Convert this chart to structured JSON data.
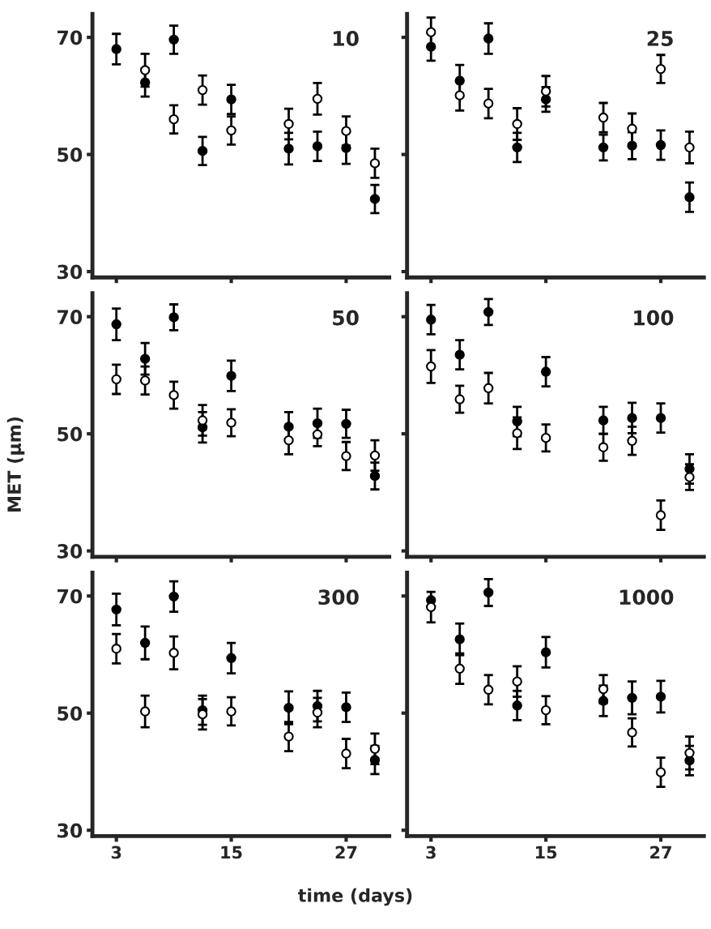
{
  "chart_data": [
    {
      "type": "scatter",
      "annotations": [
        "10"
      ],
      "x": [
        3,
        6,
        9,
        12,
        15,
        21,
        24,
        27,
        30
      ],
      "xlim": [
        0.5,
        31.5
      ],
      "xticks": [
        3,
        15,
        27
      ],
      "ylim": [
        29,
        74
      ],
      "yticks": [
        30,
        50,
        70
      ],
      "tick_labels": "y",
      "marker": "circle",
      "series": [
        {
          "color": "#000000",
          "values": [
            68.0,
            62.3,
            69.6,
            50.6,
            59.4,
            51.0,
            51.4,
            51.1,
            42.4
          ],
          "errors": [
            2.6,
            2.4,
            2.4,
            2.4,
            2.5,
            2.7,
            2.5,
            2.7,
            2.4
          ]
        },
        {
          "color": "#ffffff",
          "values": [
            null,
            64.4,
            56.0,
            61.0,
            54.1,
            55.2,
            59.5,
            54.0,
            48.5
          ],
          "errors": [
            null,
            2.8,
            2.4,
            2.5,
            2.4,
            2.6,
            2.7,
            2.5,
            2.5
          ]
        }
      ]
    },
    {
      "type": "scatter",
      "annotations": [
        "25"
      ],
      "x": [
        3,
        6,
        9,
        12,
        15,
        21,
        24,
        27,
        30
      ],
      "xlim": [
        0.5,
        31.5
      ],
      "xticks": [
        3,
        15,
        27
      ],
      "ylim": [
        29,
        74
      ],
      "yticks": [
        30,
        50,
        70
      ],
      "tick_labels": false,
      "marker": "circle",
      "series": [
        {
          "color": "#000000",
          "values": [
            68.4,
            62.6,
            69.8,
            51.2,
            59.4,
            51.2,
            51.5,
            51.6,
            42.7
          ],
          "errors": [
            2.4,
            2.7,
            2.6,
            2.5,
            2.1,
            2.2,
            2.3,
            2.5,
            2.5
          ]
        },
        {
          "color": "#ffffff",
          "values": [
            70.9,
            60.1,
            58.7,
            55.2,
            60.8,
            56.3,
            54.4,
            64.6,
            51.2
          ],
          "errors": [
            2.5,
            2.6,
            2.5,
            2.7,
            2.6,
            2.5,
            2.6,
            2.4,
            2.7
          ]
        }
      ]
    },
    {
      "type": "scatter",
      "annotations": [
        "50"
      ],
      "ylabel": "MET (µm)",
      "x": [
        3,
        6,
        9,
        12,
        15,
        21,
        24,
        27,
        30
      ],
      "xlim": [
        0.5,
        31.5
      ],
      "xticks": [
        3,
        15,
        27
      ],
      "ylim": [
        29,
        74
      ],
      "yticks": [
        30,
        50,
        70
      ],
      "tick_labels": "y",
      "marker": "circle",
      "series": [
        {
          "color": "#000000",
          "values": [
            68.7,
            62.8,
            69.9,
            51.1,
            59.9,
            51.2,
            51.8,
            51.7,
            42.8
          ],
          "errors": [
            2.7,
            2.7,
            2.2,
            2.6,
            2.6,
            2.5,
            2.5,
            2.4,
            2.3
          ]
        },
        {
          "color": "#ffffff",
          "values": [
            59.3,
            59.1,
            56.6,
            52.3,
            51.9,
            48.9,
            49.9,
            46.2,
            46.3
          ],
          "errors": [
            2.5,
            2.4,
            2.3,
            2.6,
            2.3,
            2.4,
            2.0,
            2.4,
            2.6
          ]
        }
      ]
    },
    {
      "type": "scatter",
      "annotations": [
        "100"
      ],
      "x": [
        3,
        6,
        9,
        12,
        15,
        21,
        24,
        27,
        30
      ],
      "xlim": [
        0.5,
        31.5
      ],
      "xticks": [
        3,
        15,
        27
      ],
      "ylim": [
        29,
        74
      ],
      "yticks": [
        30,
        50,
        70
      ],
      "tick_labels": false,
      "marker": "circle",
      "series": [
        {
          "color": "#000000",
          "values": [
            69.5,
            63.5,
            70.8,
            52.1,
            60.6,
            52.3,
            52.7,
            52.7,
            44.0
          ],
          "errors": [
            2.5,
            2.5,
            2.2,
            2.5,
            2.5,
            2.3,
            2.6,
            2.5,
            2.5
          ]
        },
        {
          "color": "#ffffff",
          "values": [
            61.5,
            55.9,
            57.8,
            50.1,
            49.3,
            47.7,
            48.8,
            36.1,
            42.6
          ],
          "errors": [
            2.8,
            2.3,
            2.6,
            2.7,
            2.3,
            2.3,
            2.4,
            2.5,
            2.2
          ]
        }
      ]
    },
    {
      "type": "scatter",
      "annotations": [
        "300"
      ],
      "xlabel": "time (days)",
      "x": [
        3,
        6,
        9,
        12,
        15,
        21,
        24,
        27,
        30
      ],
      "xlim": [
        0.5,
        31.5
      ],
      "xticks": [
        3,
        15,
        27
      ],
      "ylim": [
        29,
        74
      ],
      "yticks": [
        30,
        50,
        70
      ],
      "marker": "circle",
      "series": [
        {
          "color": "#000000",
          "values": [
            67.7,
            62.0,
            69.9,
            50.5,
            59.4,
            50.9,
            51.2,
            51.0,
            42.0
          ],
          "errors": [
            2.7,
            2.8,
            2.6,
            2.5,
            2.6,
            2.8,
            2.6,
            2.5,
            2.4
          ]
        },
        {
          "color": "#ffffff",
          "values": [
            61.0,
            50.3,
            60.3,
            49.8,
            50.3,
            46.0,
            50.1,
            43.1,
            43.9
          ],
          "errors": [
            2.5,
            2.7,
            2.8,
            2.6,
            2.4,
            2.5,
            2.5,
            2.5,
            2.6
          ]
        }
      ]
    },
    {
      "type": "scatter",
      "annotations": [
        "1000"
      ],
      "x": [
        3,
        6,
        9,
        12,
        15,
        21,
        24,
        27,
        30
      ],
      "xlim": [
        0.5,
        31.5
      ],
      "xticks": [
        3,
        15,
        27
      ],
      "ylim": [
        29,
        74
      ],
      "yticks": [
        30,
        50,
        70
      ],
      "tick_labels": "x",
      "marker": "circle",
      "series": [
        {
          "color": "#000000",
          "values": [
            69.3,
            62.6,
            70.6,
            51.3,
            60.4,
            52.1,
            52.6,
            52.8,
            41.9
          ],
          "errors": [
            null,
            2.7,
            2.3,
            2.5,
            2.6,
            2.6,
            2.8,
            2.7,
            2.5
          ]
        },
        {
          "color": "#ffffff",
          "values": [
            68.1,
            57.6,
            54.0,
            55.4,
            50.5,
            54.1,
            46.7,
            39.9,
            43.2
          ],
          "errors": [
            2.6,
            2.6,
            2.5,
            2.6,
            2.4,
            2.4,
            2.4,
            2.5,
            2.8
          ]
        }
      ]
    }
  ]
}
